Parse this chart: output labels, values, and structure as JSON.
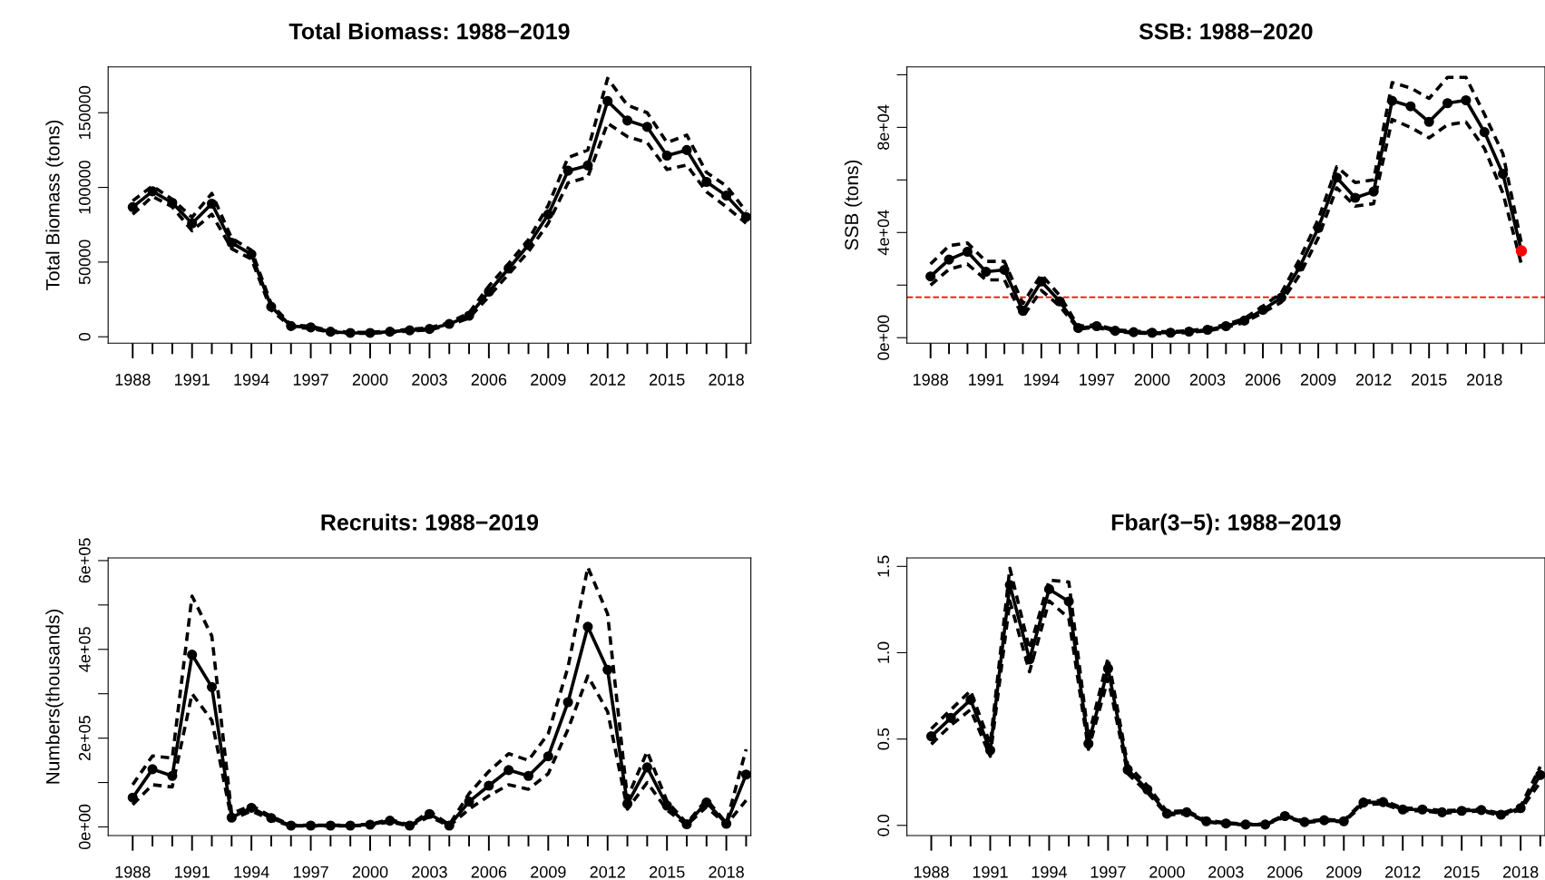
{
  "chart_data": [
    {
      "type": "line",
      "title": "Total Biomass: 1988−2019",
      "ylabel": "Total Biomass (tons)",
      "grid": false,
      "legend": false,
      "x": [
        1988,
        1989,
        1990,
        1991,
        1992,
        1993,
        1994,
        1995,
        1996,
        1997,
        1998,
        1999,
        2000,
        2001,
        2002,
        2003,
        2004,
        2005,
        2006,
        2007,
        2008,
        2009,
        2010,
        2011,
        2012,
        2013,
        2014,
        2015,
        2016,
        2017,
        2018,
        2019
      ],
      "xlim": [
        1986.76,
        2019.24
      ],
      "xticks": [
        1988,
        {
          "value": 1989,
          "label": null
        },
        {
          "value": 1990,
          "label": null
        },
        1991,
        {
          "value": 1992,
          "label": null
        },
        {
          "value": 1993,
          "label": null
        },
        1994,
        {
          "value": 1995,
          "label": null
        },
        {
          "value": 1996,
          "label": null
        },
        1997,
        {
          "value": 1998,
          "label": null
        },
        {
          "value": 1999,
          "label": null
        },
        2000,
        {
          "value": 2001,
          "label": null
        },
        {
          "value": 2002,
          "label": null
        },
        2003,
        {
          "value": 2004,
          "label": null
        },
        {
          "value": 2005,
          "label": null
        },
        2006,
        {
          "value": 2007,
          "label": null
        },
        {
          "value": 2008,
          "label": null
        },
        2009,
        {
          "value": 2010,
          "label": null
        },
        {
          "value": 2011,
          "label": null
        },
        2012,
        {
          "value": 2013,
          "label": null
        },
        {
          "value": 2014,
          "label": null
        },
        2015,
        {
          "value": 2016,
          "label": null
        },
        {
          "value": 2017,
          "label": null
        },
        2018,
        {
          "value": 2019,
          "label": null
        }
      ],
      "ylim": [
        -4300,
        180700
      ],
      "yticks": [
        0,
        50000,
        100000,
        150000
      ],
      "series": [
        {
          "color": "#000000",
          "marker": "circle",
          "line_style": "solid",
          "values": [
            86800,
            97400,
            89700,
            75900,
            89100,
            62900,
            55200,
            20100,
            7200,
            6300,
            3400,
            2600,
            2600,
            3400,
            4300,
            5200,
            8600,
            14100,
            30200,
            45700,
            61500,
            81900,
            111200,
            114700,
            157800,
            144800,
            140500,
            121300,
            125000,
            103700,
            94500,
            80200
          ]
        },
        {
          "color": "#000000",
          "marker": "none",
          "line_style": "dashed",
          "values": [
            91000,
            101000,
            92000,
            80000,
            96000,
            66000,
            58000,
            22000,
            8000,
            7000,
            4000,
            3000,
            3000,
            4000,
            5000,
            6000,
            9500,
            16000,
            34000,
            49000,
            65000,
            88000,
            120000,
            125000,
            173000,
            155000,
            150000,
            130000,
            135000,
            110000,
            101000,
            84000
          ]
        },
        {
          "color": "#000000",
          "marker": "none",
          "line_style": "dashed",
          "values": [
            82000,
            94000,
            87000,
            71000,
            82000,
            59000,
            52000,
            18000,
            6500,
            5600,
            3000,
            2300,
            2300,
            3000,
            3800,
            4600,
            7800,
            12500,
            27000,
            42000,
            57000,
            76000,
            103000,
            107000,
            143000,
            134000,
            130000,
            112000,
            115000,
            97000,
            87000,
            76000
          ]
        }
      ]
    },
    {
      "type": "line",
      "title": "SSB: 1988−2020",
      "ylabel": "SSB (tons)",
      "grid": false,
      "legend": false,
      "x": [
        1988,
        1989,
        1990,
        1991,
        1992,
        1993,
        1994,
        1995,
        1996,
        1997,
        1998,
        1999,
        2000,
        2001,
        2002,
        2003,
        2004,
        2005,
        2006,
        2007,
        2008,
        2009,
        2010,
        2011,
        2012,
        2013,
        2014,
        2015,
        2016,
        2017,
        2018,
        2019,
        2020
      ],
      "xlim": [
        1986.72,
        2021.28
      ],
      "xticks": [
        1988,
        {
          "value": 1989,
          "label": null
        },
        {
          "value": 1990,
          "label": null
        },
        1991,
        {
          "value": 1992,
          "label": null
        },
        {
          "value": 1993,
          "label": null
        },
        1994,
        {
          "value": 1995,
          "label": null
        },
        {
          "value": 1996,
          "label": null
        },
        1997,
        {
          "value": 1998,
          "label": null
        },
        {
          "value": 1999,
          "label": null
        },
        2000,
        {
          "value": 2001,
          "label": null
        },
        {
          "value": 2002,
          "label": null
        },
        2003,
        {
          "value": 2004,
          "label": null
        },
        {
          "value": 2005,
          "label": null
        },
        2006,
        {
          "value": 2007,
          "label": null
        },
        {
          "value": 2008,
          "label": null
        },
        2009,
        {
          "value": 2010,
          "label": null
        },
        {
          "value": 2011,
          "label": null
        },
        2012,
        {
          "value": 2013,
          "label": null
        },
        {
          "value": 2014,
          "label": null
        },
        2015,
        {
          "value": 2016,
          "label": null
        },
        {
          "value": 2017,
          "label": null
        },
        2018,
        {
          "value": 2019,
          "label": null
        },
        {
          "value": 2020,
          "label": null
        }
      ],
      "ylim": [
        -2100,
        103000
      ],
      "yticks": [
        {
          "value": 0,
          "label": "0e+00"
        },
        {
          "value": 20000,
          "label": null
        },
        {
          "value": 40000,
          "label": "4e+04"
        },
        {
          "value": 60000,
          "label": null
        },
        {
          "value": 80000,
          "label": "8e+04"
        },
        {
          "value": 100000,
          "label": null
        }
      ],
      "ref_lines": [
        {
          "axis": "y",
          "value": 15400,
          "color": "#ff0000",
          "line_style": "dashed"
        }
      ],
      "series": [
        {
          "color": "#000000",
          "marker": "circle",
          "line_style": "solid",
          "values": [
            23300,
            29700,
            32700,
            25100,
            25800,
            10200,
            21400,
            13800,
            3700,
            4400,
            2600,
            2100,
            1900,
            1900,
            2300,
            3000,
            4400,
            6500,
            10600,
            15200,
            27000,
            41700,
            60900,
            53200,
            55600,
            90100,
            88000,
            82100,
            89200,
            90300,
            78200,
            62300,
            33000
          ]
        },
        {
          "color": "#000000",
          "marker": "none",
          "line_style": "dashed",
          "values": [
            28000,
            35000,
            36000,
            29000,
            29000,
            13000,
            24000,
            16000,
            4300,
            5000,
            3000,
            2500,
            2300,
            2300,
            2700,
            3500,
            5000,
            7300,
            12000,
            17000,
            30000,
            45000,
            65000,
            59000,
            60000,
            97000,
            95000,
            91000,
            99000,
            99000,
            85000,
            70000,
            36000
          ]
        },
        {
          "color": "#000000",
          "marker": "none",
          "line_style": "dashed",
          "values": [
            20000,
            26000,
            28000,
            22000,
            22000,
            8000,
            18000,
            12000,
            3300,
            3900,
            2300,
            1800,
            1600,
            1600,
            2000,
            2600,
            3900,
            5800,
            9500,
            13500,
            24000,
            38000,
            57000,
            50000,
            51000,
            83000,
            80000,
            76000,
            81000,
            82000,
            72000,
            55000,
            28000
          ]
        },
        {
          "type": "scatter",
          "marker": "circle",
          "color": "#ff0000",
          "x": [
            2020
          ],
          "values": [
            33000
          ]
        }
      ]
    },
    {
      "type": "line",
      "title": "Recruits: 1988−2019",
      "ylabel": "Numbers(thousands)",
      "grid": false,
      "legend": false,
      "x": [
        1988,
        1989,
        1990,
        1991,
        1992,
        1993,
        1994,
        1995,
        1996,
        1997,
        1998,
        1999,
        2000,
        2001,
        2002,
        2003,
        2004,
        2005,
        2006,
        2007,
        2008,
        2009,
        2010,
        2011,
        2012,
        2013,
        2014,
        2015,
        2016,
        2017,
        2018,
        2019
      ],
      "xlim": [
        1986.76,
        2019.24
      ],
      "xticks": [
        1988,
        {
          "value": 1989,
          "label": null
        },
        {
          "value": 1990,
          "label": null
        },
        1991,
        {
          "value": 1992,
          "label": null
        },
        {
          "value": 1993,
          "label": null
        },
        1994,
        {
          "value": 1995,
          "label": null
        },
        {
          "value": 1996,
          "label": null
        },
        1997,
        {
          "value": 1998,
          "label": null
        },
        {
          "value": 1999,
          "label": null
        },
        2000,
        {
          "value": 2001,
          "label": null
        },
        {
          "value": 2002,
          "label": null
        },
        2003,
        {
          "value": 2004,
          "label": null
        },
        {
          "value": 2005,
          "label": null
        },
        2006,
        {
          "value": 2007,
          "label": null
        },
        {
          "value": 2008,
          "label": null
        },
        2009,
        {
          "value": 2010,
          "label": null
        },
        {
          "value": 2011,
          "label": null
        },
        2012,
        {
          "value": 2013,
          "label": null
        },
        {
          "value": 2014,
          "label": null
        },
        2015,
        {
          "value": 2016,
          "label": null
        },
        {
          "value": 2017,
          "label": null
        },
        2018,
        {
          "value": 2019,
          "label": null
        }
      ],
      "ylim": [
        -19500,
        606000
      ],
      "yticks": [
        {
          "value": 0,
          "label": "0e+00"
        },
        {
          "value": 100000,
          "label": null
        },
        {
          "value": 200000,
          "label": "2e+05"
        },
        {
          "value": 300000,
          "label": null
        },
        {
          "value": 400000,
          "label": "4e+05"
        },
        {
          "value": 500000,
          "label": null
        },
        {
          "value": 600000,
          "label": "6e+05"
        }
      ],
      "series": [
        {
          "color": "#000000",
          "marker": "circle",
          "line_style": "solid",
          "values": [
            66000,
            130000,
            115000,
            388000,
            315000,
            21000,
            43000,
            20000,
            3000,
            3000,
            3000,
            3000,
            5000,
            14000,
            3000,
            29000,
            3000,
            57000,
            93000,
            128000,
            115000,
            159000,
            281000,
            451000,
            354000,
            52000,
            134000,
            48000,
            6000,
            55000,
            7000,
            118000
          ]
        },
        {
          "color": "#000000",
          "marker": "none",
          "line_style": "dashed",
          "values": [
            95000,
            160000,
            155000,
            520000,
            430000,
            30000,
            48000,
            24000,
            4000,
            4000,
            4000,
            4000,
            6000,
            17000,
            4000,
            35000,
            5000,
            75000,
            125000,
            165000,
            150000,
            210000,
            360000,
            585000,
            480000,
            65000,
            170000,
            58000,
            8000,
            62000,
            9000,
            175000
          ]
        },
        {
          "color": "#000000",
          "marker": "none",
          "line_style": "dashed",
          "values": [
            50000,
            95000,
            90000,
            300000,
            240000,
            16000,
            36000,
            16000,
            2000,
            2000,
            2000,
            2000,
            4000,
            11000,
            2000,
            23000,
            2000,
            40000,
            70000,
            95000,
            85000,
            120000,
            220000,
            340000,
            260000,
            40000,
            100000,
            38000,
            4000,
            45000,
            5000,
            60000
          ]
        }
      ]
    },
    {
      "type": "line",
      "title": "Fbar(3−5): 1988−2019",
      "grid": false,
      "legend": false,
      "x": [
        1988,
        1989,
        1990,
        1991,
        1992,
        1993,
        1994,
        1995,
        1996,
        1997,
        1998,
        1999,
        2000,
        2001,
        2002,
        2003,
        2004,
        2005,
        2006,
        2007,
        2008,
        2009,
        2010,
        2011,
        2012,
        2013,
        2014,
        2015,
        2016,
        2017,
        2018,
        2019
      ],
      "xlim": [
        1986.76,
        2019.24
      ],
      "xticks": [
        1988,
        {
          "value": 1989,
          "label": null
        },
        {
          "value": 1990,
          "label": null
        },
        1991,
        {
          "value": 1992,
          "label": null
        },
        {
          "value": 1993,
          "label": null
        },
        1994,
        {
          "value": 1995,
          "label": null
        },
        {
          "value": 1996,
          "label": null
        },
        1997,
        {
          "value": 1998,
          "label": null
        },
        {
          "value": 1999,
          "label": null
        },
        2000,
        {
          "value": 2001,
          "label": null
        },
        {
          "value": 2002,
          "label": null
        },
        2003,
        {
          "value": 2004,
          "label": null
        },
        {
          "value": 2005,
          "label": null
        },
        2006,
        {
          "value": 2007,
          "label": null
        },
        {
          "value": 2008,
          "label": null
        },
        2009,
        {
          "value": 2010,
          "label": null
        },
        {
          "value": 2011,
          "label": null
        },
        2012,
        {
          "value": 2013,
          "label": null
        },
        {
          "value": 2014,
          "label": null
        },
        2015,
        {
          "value": 2016,
          "label": null
        },
        {
          "value": 2017,
          "label": null
        },
        2018,
        {
          "value": 2019,
          "label": null
        }
      ],
      "ylim": [
        -0.059,
        1.549
      ],
      "yticks": [
        {
          "value": 0,
          "label": "0.0"
        },
        {
          "value": 0.5,
          "label": "0.5"
        },
        {
          "value": 1,
          "label": "1.0"
        },
        {
          "value": 1.5,
          "label": "1.5"
        }
      ],
      "series": [
        {
          "color": "#000000",
          "marker": "circle",
          "line_style": "solid",
          "values": [
            0.516,
            0.622,
            0.727,
            0.435,
            1.392,
            0.962,
            1.368,
            1.297,
            0.473,
            0.908,
            0.322,
            0.208,
            0.068,
            0.076,
            0.024,
            0.011,
            0.005,
            0.005,
            0.054,
            0.019,
            0.03,
            0.024,
            0.132,
            0.135,
            0.092,
            0.092,
            0.076,
            0.084,
            0.089,
            0.062,
            0.1,
            0.292
          ]
        },
        {
          "color": "#000000",
          "marker": "none",
          "line_style": "dashed",
          "values": [
            0.56,
            0.67,
            0.78,
            0.47,
            1.49,
            1.02,
            1.42,
            1.41,
            0.51,
            0.97,
            0.35,
            0.23,
            0.08,
            0.085,
            0.03,
            0.015,
            0.008,
            0.008,
            0.06,
            0.022,
            0.035,
            0.028,
            0.14,
            0.145,
            0.1,
            0.1,
            0.085,
            0.09,
            0.095,
            0.068,
            0.11,
            0.34
          ]
        },
        {
          "color": "#000000",
          "marker": "none",
          "line_style": "dashed",
          "values": [
            0.47,
            0.58,
            0.67,
            0.4,
            1.3,
            0.89,
            1.3,
            1.2,
            0.44,
            0.85,
            0.3,
            0.19,
            0.06,
            0.068,
            0.02,
            0.008,
            0.003,
            0.003,
            0.048,
            0.016,
            0.026,
            0.02,
            0.12,
            0.125,
            0.085,
            0.085,
            0.07,
            0.078,
            0.083,
            0.056,
            0.09,
            0.25
          ]
        }
      ]
    }
  ]
}
